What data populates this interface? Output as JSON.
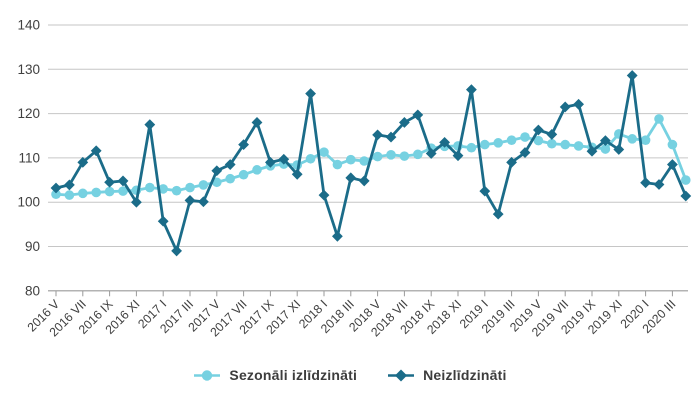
{
  "chart_data": {
    "type": "line",
    "title": "",
    "xlabel": "",
    "ylabel": "",
    "ylim": [
      80,
      140
    ],
    "yticks": [
      80,
      90,
      100,
      110,
      120,
      130,
      140
    ],
    "grid": "horizontal",
    "legend_position": "bottom-center",
    "tick_label_every": 2,
    "categories": [
      "2016 V",
      "2016 VI",
      "2016 VII",
      "2016 VIII",
      "2016 IX",
      "2016 X",
      "2016 XI",
      "2016 XII",
      "2017 I",
      "2017 II",
      "2017 III",
      "2017 IV",
      "2017 V",
      "2017 VI",
      "2017 VII",
      "2017 VIII",
      "2017 IX",
      "2017 X",
      "2017 XI",
      "2017 XII",
      "2018 I",
      "2018 II",
      "2018 III",
      "2018 IV",
      "2018 V",
      "2018 VI",
      "2018 VII",
      "2018 VIII",
      "2018 IX",
      "2018 X",
      "2018 XI",
      "2018 XII",
      "2019 I",
      "2019 II",
      "2019 III",
      "2019 IV",
      "2019 V",
      "2019 VI",
      "2019 VII",
      "2019 VIII",
      "2019 IX",
      "2019 X",
      "2019 XI",
      "2019 XII",
      "2020 I",
      "2020 II",
      "2020 III",
      "2020 IV"
    ],
    "series": [
      {
        "name": "Sezonāli izlīdzināti",
        "marker": "circle",
        "color": "#76d1e1",
        "values": [
          101.8,
          101.6,
          102.0,
          102.2,
          102.4,
          102.5,
          102.7,
          103.3,
          103.0,
          102.6,
          103.3,
          103.9,
          104.5,
          105.3,
          106.2,
          107.3,
          108.2,
          108.6,
          108.4,
          109.8,
          111.3,
          108.5,
          109.6,
          109.3,
          110.3,
          110.7,
          110.4,
          110.8,
          112.2,
          112.6,
          112.7,
          112.3,
          113.0,
          113.4,
          114.0,
          114.7,
          113.9,
          113.2,
          113.0,
          112.7,
          112.4,
          112.0,
          115.4,
          114.3,
          114.0,
          118.8,
          113.0,
          105.0
        ]
      },
      {
        "name": "Neizlīdzināti",
        "marker": "diamond",
        "color": "#1b6c89",
        "values": [
          103.2,
          103.9,
          109.0,
          111.6,
          104.5,
          104.8,
          100.0,
          117.5,
          95.7,
          89.0,
          100.4,
          100.1,
          107.1,
          108.5,
          113.0,
          118.0,
          109.0,
          109.7,
          106.3,
          124.5,
          101.6,
          92.3,
          105.5,
          104.8,
          115.2,
          114.7,
          118.0,
          119.7,
          111.0,
          113.5,
          110.5,
          125.4,
          102.5,
          97.3,
          109.0,
          111.2,
          116.3,
          115.3,
          121.5,
          122.1,
          111.5,
          113.9,
          111.9,
          128.6,
          104.4,
          104.0,
          108.5,
          101.4
        ]
      }
    ]
  },
  "colors": {
    "grid": "#c6c6c6",
    "axis": "#9a9a9a",
    "text": "#404040"
  }
}
